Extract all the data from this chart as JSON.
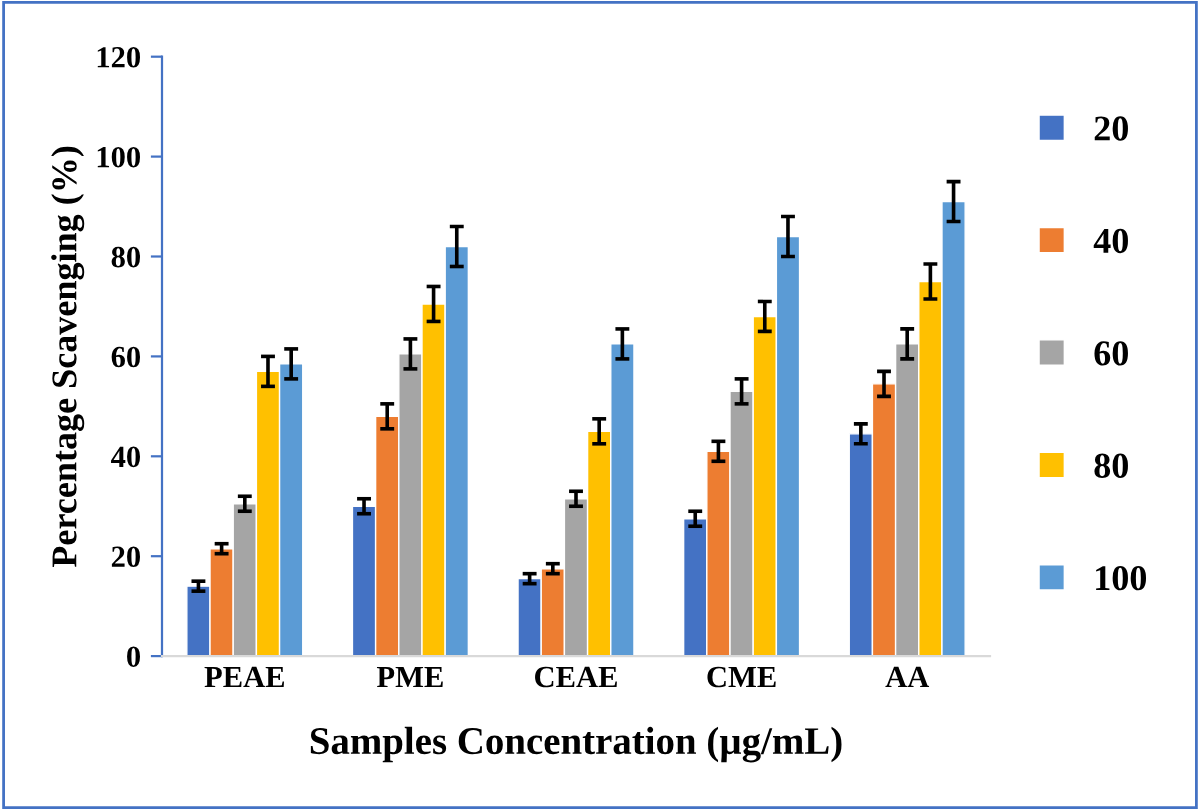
{
  "chart_data": {
    "type": "bar",
    "xlabel": "Samples Concentration (µg/mL)",
    "ylabel": "Percentage Scavenging (%)",
    "categories": [
      "PEAE",
      "PME",
      "CEAE",
      "CME",
      "AA"
    ],
    "series": [
      {
        "name": "20",
        "color": "#4472c4",
        "values": [
          14,
          30,
          15.5,
          27.5,
          44.5
        ],
        "errors": [
          1,
          1.5,
          1,
          1.5,
          2
        ]
      },
      {
        "name": "40",
        "color": "#ed7d31",
        "values": [
          21.5,
          48,
          17.5,
          41,
          54.5
        ],
        "errors": [
          1,
          2.5,
          1,
          2,
          2.5
        ]
      },
      {
        "name": "60",
        "color": "#a5a5a5",
        "values": [
          30.5,
          60.5,
          31.5,
          53,
          62.5
        ],
        "errors": [
          1.5,
          3,
          1.5,
          2.5,
          3
        ]
      },
      {
        "name": "80",
        "color": "#ffc000",
        "values": [
          57,
          70.5,
          45,
          68,
          75
        ],
        "errors": [
          3,
          3.5,
          2.5,
          3,
          3.5
        ]
      },
      {
        "name": "100",
        "color": "#5b9bd5",
        "values": [
          58.5,
          82,
          62.5,
          84,
          91
        ],
        "errors": [
          3,
          4,
          3,
          4,
          4
        ]
      }
    ],
    "ylim": [
      0,
      120
    ],
    "yticks": [
      0,
      20,
      40,
      60,
      80,
      100,
      120
    ],
    "grid": false,
    "legend": "right"
  }
}
